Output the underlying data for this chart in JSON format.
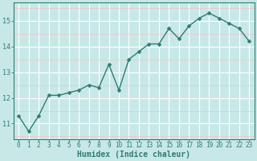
{
  "x": [
    0,
    1,
    2,
    3,
    4,
    5,
    6,
    7,
    8,
    9,
    10,
    11,
    12,
    13,
    14,
    15,
    16,
    17,
    18,
    19,
    20,
    21,
    22,
    23
  ],
  "y": [
    11.3,
    10.7,
    11.3,
    12.1,
    12.1,
    12.2,
    12.3,
    12.5,
    12.4,
    13.3,
    12.3,
    13.5,
    13.8,
    14.1,
    14.1,
    14.7,
    14.3,
    14.8,
    15.1,
    15.3,
    15.1,
    14.9,
    14.7,
    14.2
  ],
  "line_color": "#2e7d6e",
  "marker": "D",
  "marker_size": 2.5,
  "bg_color": "#c8e8e8",
  "grid_color_major": "#ffffff",
  "grid_color_minor": "#f5c0c0",
  "xlabel": "Humidex (Indice chaleur)",
  "xlabel_fontsize": 7,
  "ylabel_ticks": [
    11,
    12,
    13,
    14,
    15
  ],
  "xtick_labels": [
    "0",
    "1",
    "2",
    "3",
    "4",
    "5",
    "6",
    "7",
    "8",
    "9",
    "10",
    "11",
    "12",
    "13",
    "14",
    "15",
    "16",
    "17",
    "18",
    "19",
    "20",
    "21",
    "22",
    "23"
  ],
  "ylim": [
    10.4,
    15.7
  ],
  "xlim": [
    -0.5,
    23.5
  ],
  "tick_color": "#2e7d6e",
  "tick_fontsize": 5.5,
  "axis_color": "#2e7d6e"
}
